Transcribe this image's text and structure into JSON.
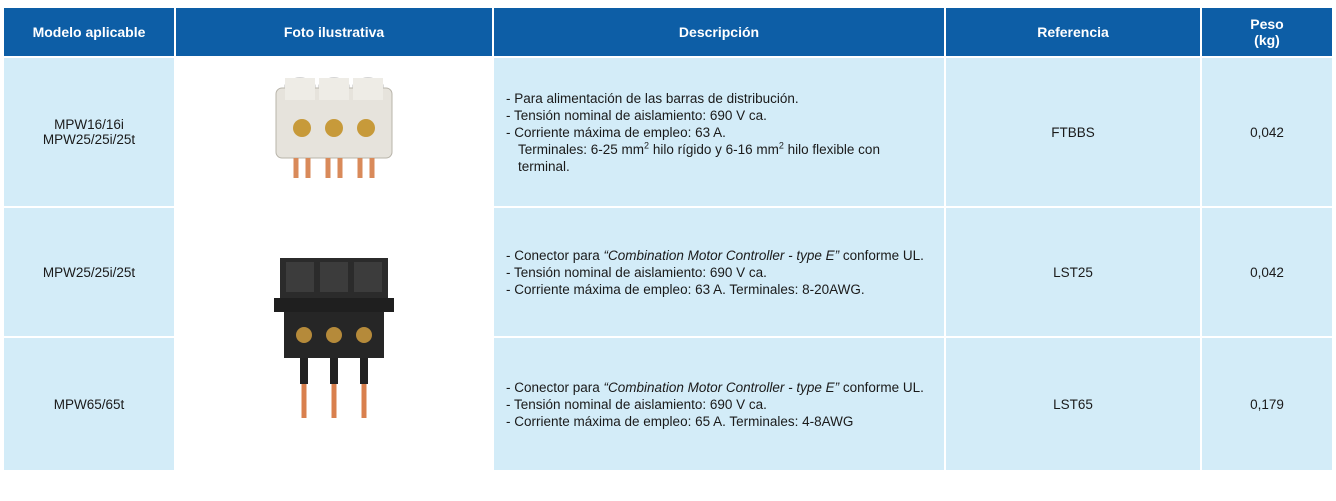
{
  "header": {
    "model": "Modelo aplicable",
    "photo": "Foto ilustrativa",
    "description": "Descripción",
    "reference": "Referencia",
    "weight": [
      "Peso",
      "(kg)"
    ]
  },
  "rows": [
    {
      "model": [
        "MPW16/16i",
        "MPW25/25i/25t"
      ],
      "description": [
        "- Para alimentación de las barras de distribución.",
        "- Tensión nominal de aislamiento: 690 V ca.",
        "- Corriente máxima de empleo: 63 A."
      ],
      "terminals": [
        "Terminales: 6-25 mm",
        "2",
        " hilo rígido y 6-16 mm",
        "2",
        " hilo flexible con terminal."
      ],
      "reference": "FTBBS",
      "weight": "0,042"
    },
    {
      "model": [
        "MPW25/25i/25t"
      ],
      "description": [
        [
          "- Conector para ",
          "“Combination Motor Controller - type E”",
          " conforme UL."
        ],
        "- Tensión nominal de aislamiento: 690 V ca.",
        "- Corriente máxima de empleo: 63 A. Terminales: 8-20AWG."
      ],
      "reference": "LST25",
      "weight": "0,042"
    },
    {
      "model": [
        "MPW65/65t"
      ],
      "description": [
        [
          "- Conector para ",
          "“Combination Motor Controller - type E”",
          " conforme UL."
        ],
        "- Tensión nominal de aislamiento: 690 V ca.",
        "- Corriente máxima de empleo: 65 A. Terminales: 4-8AWG"
      ],
      "reference": "LST65",
      "weight": "0,179"
    }
  ]
}
